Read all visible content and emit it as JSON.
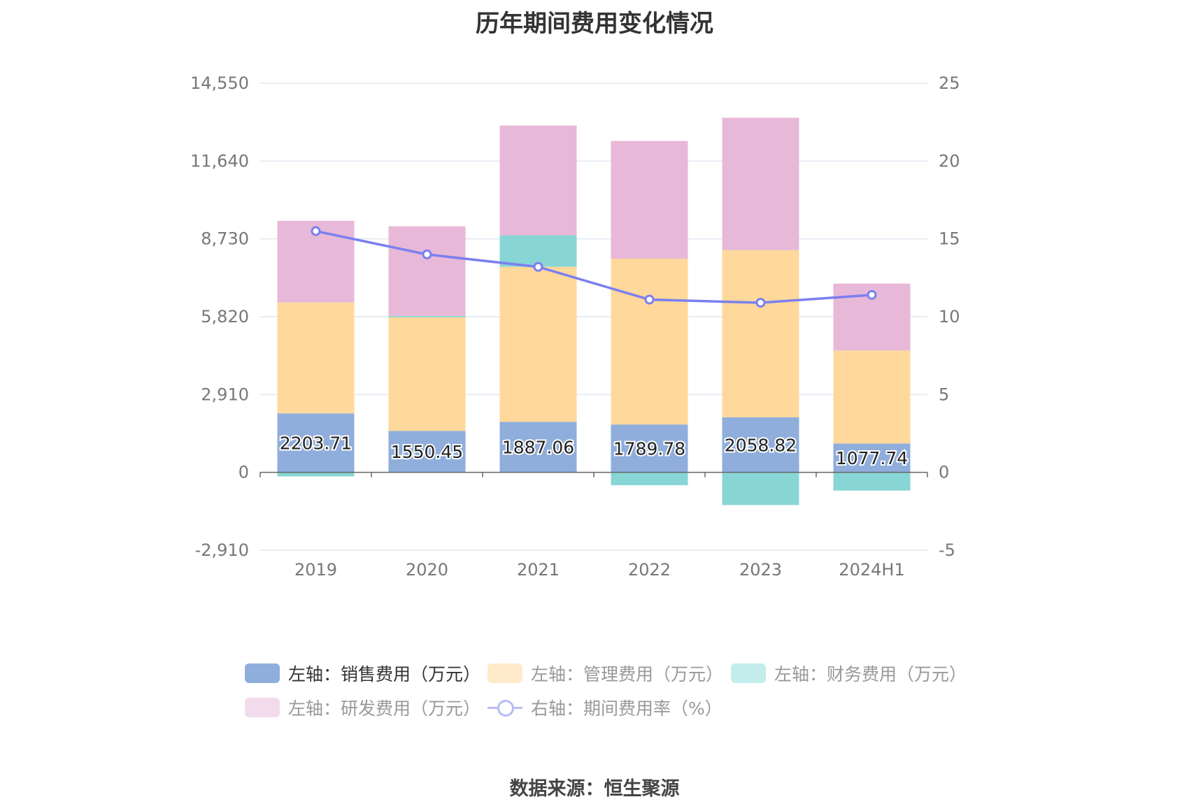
{
  "title": "历年期间费用变化情况",
  "source": "数据来源：恒生聚源",
  "chart_data": {
    "type": "bar",
    "stacked": true,
    "categories": [
      "2019",
      "2020",
      "2021",
      "2022",
      "2023",
      "2024H1"
    ],
    "left_axis": {
      "min": -2910,
      "max": 14550,
      "ticks": [
        -2910,
        0,
        2910,
        5820,
        8730,
        11640,
        14550
      ],
      "tick_labels": [
        "-2,910",
        "0",
        "2,910",
        "5,820",
        "8,730",
        "11,640",
        "14,550"
      ]
    },
    "right_axis": {
      "min": -5,
      "max": 25,
      "ticks": [
        -5,
        0,
        5,
        10,
        15,
        20,
        25
      ],
      "tick_labels": [
        "-5",
        "0",
        "5",
        "10",
        "15",
        "20",
        "25"
      ]
    },
    "series": [
      {
        "name": "左轴：销售费用（万元）",
        "axis": "left",
        "color": "#8faedc",
        "values": [
          2203.71,
          1550.45,
          1887.06,
          1789.78,
          2058.82,
          1077.74
        ],
        "show_labels": true
      },
      {
        "name": "左轴：管理费用（万元）",
        "axis": "left",
        "color": "#ffd89b",
        "values": [
          4150,
          4250,
          5800,
          6200,
          6250,
          3480
        ]
      },
      {
        "name": "左轴：财务费用（万元）",
        "axis": "left",
        "color": "#88d5d5",
        "values": [
          -150,
          50,
          1180,
          -480,
          -1220,
          -680
        ]
      },
      {
        "name": "左轴：研发费用（万元）",
        "axis": "left",
        "color": "#e8b8d8",
        "values": [
          3050,
          3350,
          4100,
          4400,
          4950,
          2500
        ]
      },
      {
        "name": "右轴：期间费用率（%）",
        "axis": "right",
        "type": "line",
        "color": "#7b7ff0",
        "values": [
          15.5,
          14.0,
          13.2,
          11.1,
          10.9,
          11.4
        ]
      }
    ],
    "legend": [
      {
        "label": "左轴：销售费用（万元）",
        "color": "#8faedc",
        "kind": "box",
        "active": true
      },
      {
        "label": "左轴：管理费用（万元）",
        "color": "#ffeacb",
        "kind": "box",
        "active": false
      },
      {
        "label": "左轴：财务费用（万元）",
        "color": "#c3ecec",
        "kind": "box",
        "active": false
      },
      {
        "label": "左轴：研发费用（万元）",
        "color": "#f2dcec",
        "kind": "box",
        "active": false
      },
      {
        "label": "右轴：期间费用率（%）",
        "color": "#b8bbf4",
        "kind": "line",
        "active": false
      }
    ]
  }
}
